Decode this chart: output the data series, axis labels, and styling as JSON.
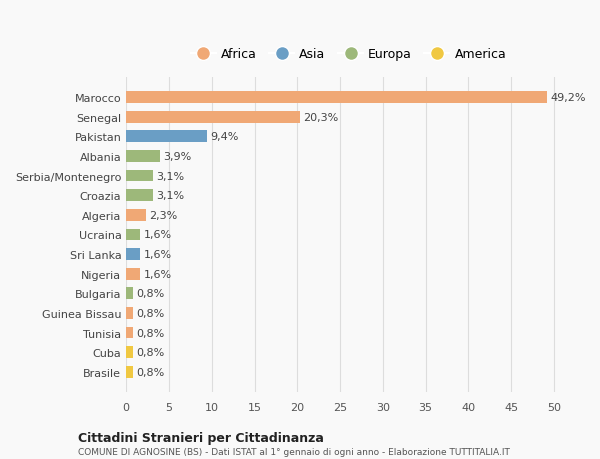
{
  "countries": [
    "Brasile",
    "Cuba",
    "Tunisia",
    "Guinea Bissau",
    "Bulgaria",
    "Nigeria",
    "Sri Lanka",
    "Ucraina",
    "Algeria",
    "Croazia",
    "Serbia/Montenegro",
    "Albania",
    "Pakistan",
    "Senegal",
    "Marocco"
  ],
  "values": [
    0.8,
    0.8,
    0.8,
    0.8,
    0.8,
    1.6,
    1.6,
    1.6,
    2.3,
    3.1,
    3.1,
    3.9,
    9.4,
    20.3,
    49.2
  ],
  "labels": [
    "0,8%",
    "0,8%",
    "0,8%",
    "0,8%",
    "0,8%",
    "1,6%",
    "1,6%",
    "1,6%",
    "2,3%",
    "3,1%",
    "3,1%",
    "3,9%",
    "9,4%",
    "20,3%",
    "49,2%"
  ],
  "continents": [
    "America",
    "America",
    "Africa",
    "Africa",
    "Europa",
    "Africa",
    "Asia",
    "Europa",
    "Africa",
    "Europa",
    "Europa",
    "Europa",
    "Asia",
    "Africa",
    "Africa"
  ],
  "colors": {
    "Africa": "#F0A875",
    "Asia": "#6A9EC5",
    "Europa": "#9DB87A",
    "America": "#F0C842"
  },
  "legend_order": [
    "Africa",
    "Asia",
    "Europa",
    "America"
  ],
  "title": "Cittadini Stranieri per Cittadinanza",
  "subtitle": "COMUNE DI AGNOSINE (BS) - Dati ISTAT al 1° gennaio di ogni anno - Elaborazione TUTTITALIA.IT",
  "xlim": [
    0,
    52
  ],
  "xticks": [
    0,
    5,
    10,
    15,
    20,
    25,
    30,
    35,
    40,
    45,
    50
  ],
  "background_color": "#f9f9f9",
  "grid_color": "#dddddd",
  "bar_height": 0.6
}
